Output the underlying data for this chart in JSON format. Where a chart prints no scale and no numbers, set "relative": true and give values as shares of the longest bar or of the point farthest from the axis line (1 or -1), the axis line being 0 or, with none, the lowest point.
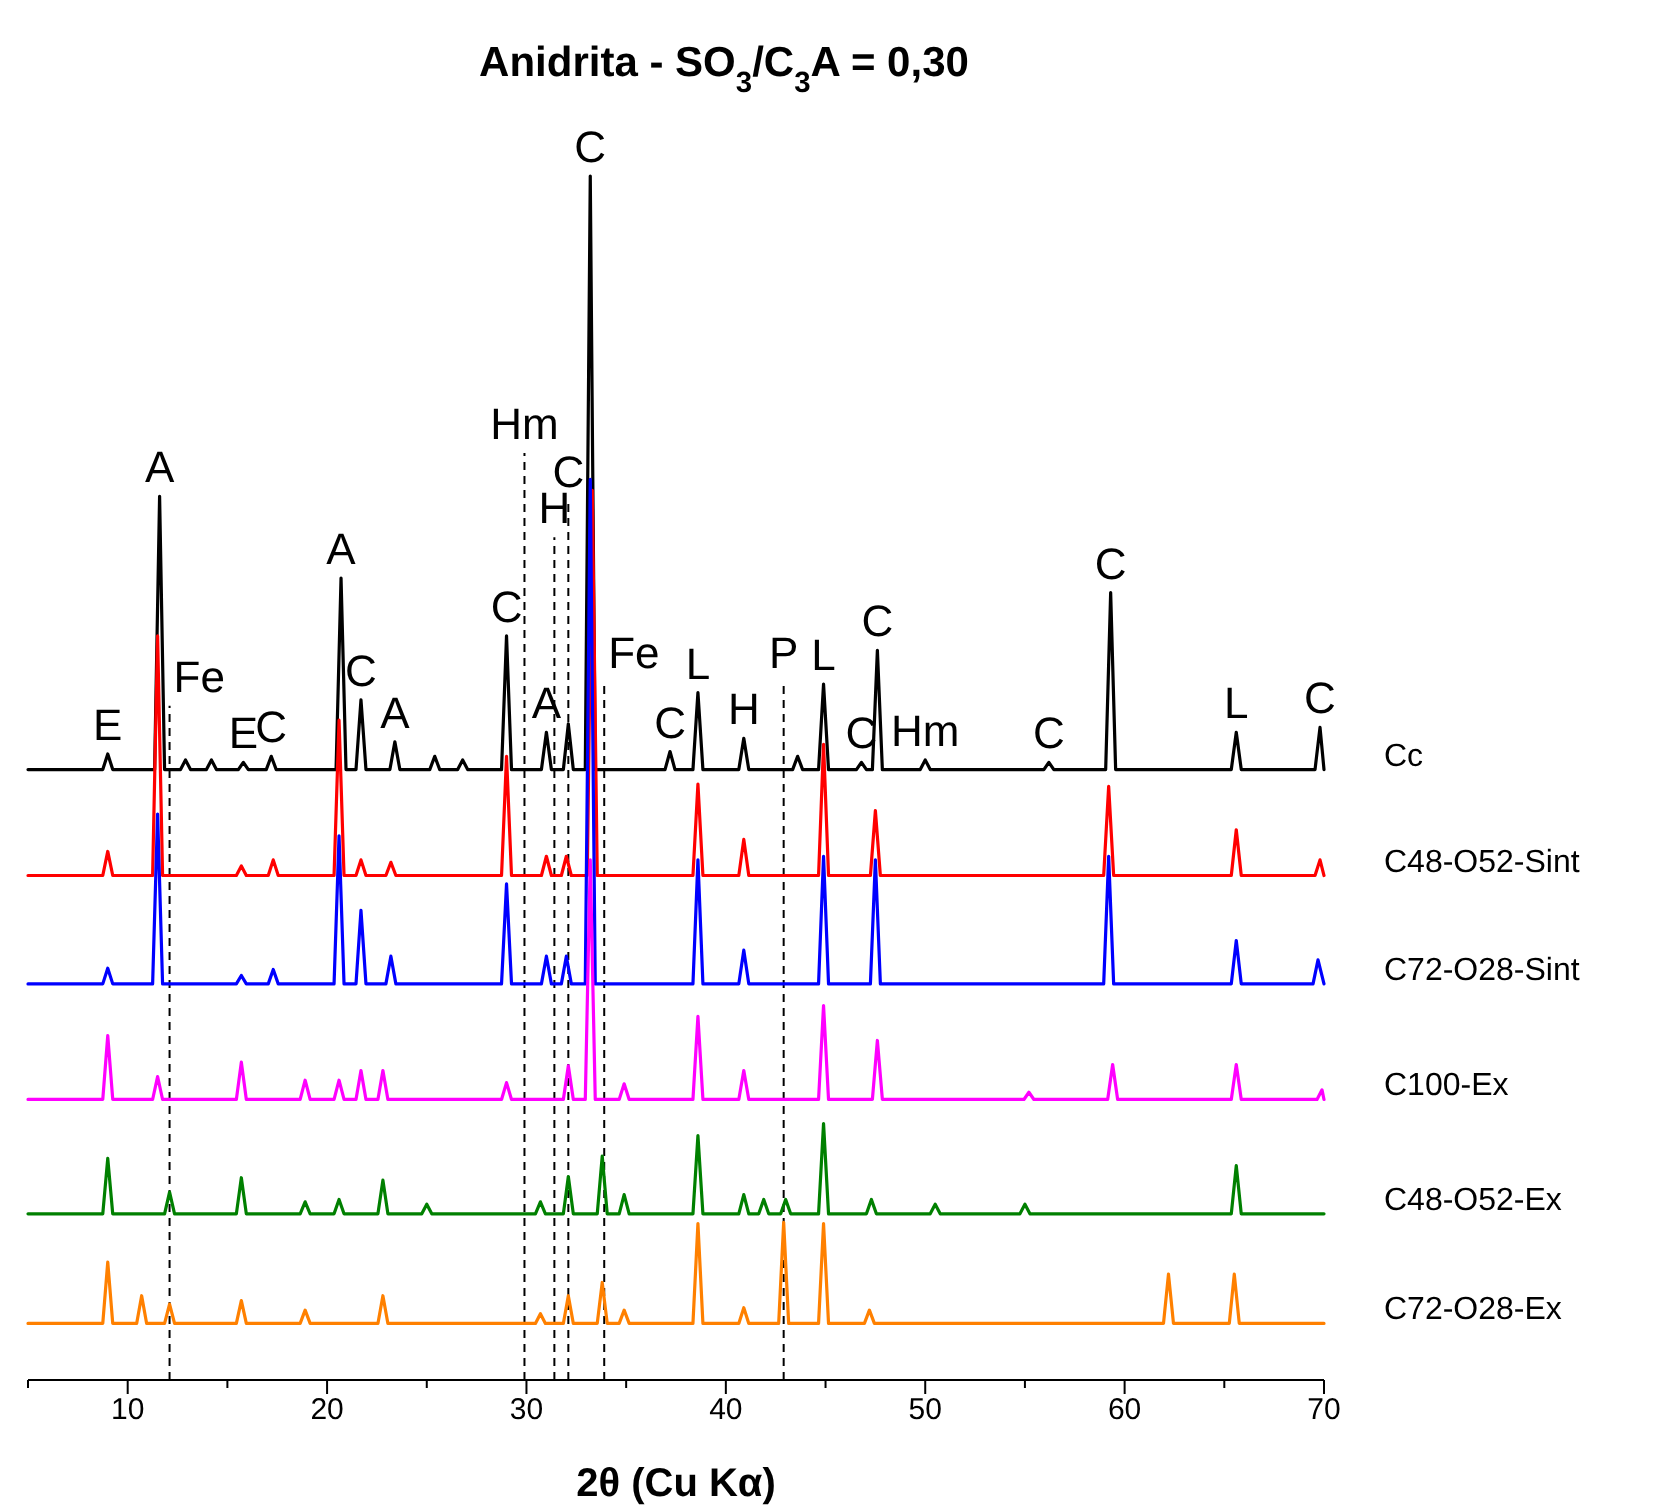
{
  "chart_data": {
    "type": "line",
    "relative": true,
    "title": "Anidrita - SO$_{3}$/C$_{3}$A = 0,30",
    "xlabel": "2θ (Cu Kα)",
    "xlim": [
      5,
      70
    ],
    "xticks": [
      {
        "value": 5,
        "label": null
      },
      10,
      {
        "value": 15,
        "label": null
      },
      20,
      {
        "value": 25,
        "label": null
      },
      30,
      {
        "value": 35,
        "label": null
      },
      40,
      {
        "value": 45,
        "label": null
      },
      50,
      {
        "value": 55,
        "label": null
      },
      60,
      {
        "value": 65,
        "label": null
      },
      70
    ],
    "grid": false,
    "legend": false,
    "marker": "none",
    "line_style": "solid",
    "series": [
      {
        "name": "Cc",
        "color": "#000000",
        "x": [
          5,
          8.75,
          9,
          9.25,
          11.35,
          11.6,
          11.85,
          12.65,
          12.9,
          13.15,
          13.95,
          14.2,
          14.45,
          15.55,
          15.8,
          16.05,
          16.95,
          17.2,
          17.45,
          20.45,
          20.7,
          20.95,
          21.45,
          21.7,
          21.95,
          23.15,
          23.4,
          23.65,
          25.15,
          25.4,
          25.65,
          26.55,
          26.8,
          27.05,
          28.75,
          29,
          29.25,
          30.75,
          31,
          31.25,
          31.85,
          32.1,
          32.35,
          32.95,
          33.2,
          33.45,
          36.95,
          37.2,
          37.45,
          38.35,
          38.6,
          38.85,
          40.65,
          40.9,
          41.15,
          43.35,
          43.6,
          43.85,
          44.65,
          44.9,
          45.15,
          46.55,
          46.8,
          47.05,
          47.35,
          47.6,
          47.85,
          49.75,
          50,
          50.25,
          55.95,
          56.2,
          56.45,
          59.05,
          59.3,
          59.55,
          65.35,
          65.6,
          65.85,
          69.55,
          69.8,
          70
        ],
        "values": [
          0.507,
          0.507,
          0.52,
          0.507,
          0.507,
          0.734,
          0.507,
          0.507,
          0.515,
          0.507,
          0.507,
          0.515,
          0.507,
          0.507,
          0.513,
          0.507,
          0.507,
          0.518,
          0.507,
          0.507,
          0.666,
          0.507,
          0.507,
          0.565,
          0.507,
          0.507,
          0.53,
          0.507,
          0.507,
          0.518,
          0.507,
          0.507,
          0.515,
          0.507,
          0.507,
          0.618,
          0.507,
          0.507,
          0.538,
          0.507,
          0.507,
          0.545,
          0.507,
          0.507,
          1.0,
          0.507,
          0.507,
          0.522,
          0.507,
          0.507,
          0.571,
          0.507,
          0.507,
          0.533,
          0.507,
          0.507,
          0.518,
          0.507,
          0.507,
          0.578,
          0.507,
          0.507,
          0.513,
          0.507,
          0.507,
          0.606,
          0.507,
          0.507,
          0.515,
          0.507,
          0.507,
          0.513,
          0.507,
          0.507,
          0.654,
          0.507,
          0.507,
          0.538,
          0.507,
          0.507,
          0.542,
          0.507
        ]
      },
      {
        "name": "C48-O52-Sint",
        "color": "#ff0000",
        "x": [
          5,
          8.75,
          9,
          9.25,
          11.25,
          11.5,
          11.75,
          15.45,
          15.7,
          15.95,
          17.05,
          17.3,
          17.55,
          20.35,
          20.6,
          20.85,
          21.45,
          21.7,
          21.95,
          22.95,
          23.2,
          23.45,
          28.75,
          29,
          29.25,
          30.75,
          31,
          31.25,
          31.75,
          32,
          32.25,
          33.05,
          33.3,
          33.55,
          38.35,
          38.6,
          38.85,
          40.65,
          40.9,
          41.15,
          44.65,
          44.9,
          45.15,
          47.25,
          47.5,
          47.75,
          58.95,
          59.2,
          59.45,
          65.35,
          65.6,
          65.85,
          69.55,
          69.8,
          70
        ],
        "values": [
          0.419,
          0.419,
          0.439,
          0.419,
          0.419,
          0.618,
          0.419,
          0.419,
          0.427,
          0.419,
          0.419,
          0.432,
          0.419,
          0.419,
          0.548,
          0.419,
          0.419,
          0.432,
          0.419,
          0.419,
          0.43,
          0.419,
          0.419,
          0.518,
          0.419,
          0.419,
          0.435,
          0.419,
          0.419,
          0.435,
          0.419,
          0.419,
          0.739,
          0.419,
          0.419,
          0.495,
          0.419,
          0.419,
          0.449,
          0.419,
          0.419,
          0.528,
          0.419,
          0.419,
          0.473,
          0.419,
          0.419,
          0.493,
          0.419,
          0.419,
          0.457,
          0.419,
          0.419,
          0.432,
          0.419
        ]
      },
      {
        "name": "C72-O28-Sint",
        "color": "#0000ff",
        "x": [
          5,
          8.75,
          9,
          9.25,
          11.25,
          11.5,
          11.75,
          15.45,
          15.7,
          15.95,
          17.05,
          17.3,
          17.55,
          20.35,
          20.6,
          20.85,
          21.45,
          21.7,
          21.95,
          22.95,
          23.2,
          23.45,
          28.75,
          29,
          29.25,
          30.75,
          31,
          31.25,
          31.75,
          32,
          32.25,
          32.95,
          33.2,
          33.45,
          38.35,
          38.6,
          38.85,
          40.65,
          40.9,
          41.15,
          44.65,
          44.9,
          45.15,
          47.25,
          47.5,
          47.75,
          58.95,
          59.2,
          59.45,
          65.35,
          65.6,
          65.85,
          69.45,
          69.7,
          70
        ],
        "values": [
          0.329,
          0.329,
          0.342,
          0.329,
          0.329,
          0.47,
          0.329,
          0.329,
          0.336,
          0.329,
          0.329,
          0.341,
          0.329,
          0.329,
          0.452,
          0.329,
          0.329,
          0.39,
          0.329,
          0.329,
          0.352,
          0.329,
          0.329,
          0.412,
          0.329,
          0.329,
          0.352,
          0.329,
          0.329,
          0.352,
          0.329,
          0.329,
          0.748,
          0.329,
          0.329,
          0.432,
          0.329,
          0.329,
          0.357,
          0.329,
          0.329,
          0.435,
          0.329,
          0.329,
          0.432,
          0.329,
          0.329,
          0.435,
          0.329,
          0.329,
          0.365,
          0.329,
          0.329,
          0.349,
          0.329
        ]
      },
      {
        "name": "C100-Ex",
        "color": "#ff00ff",
        "x": [
          5,
          8.75,
          9,
          9.25,
          11.25,
          11.5,
          11.75,
          15.45,
          15.7,
          15.95,
          18.65,
          18.9,
          19.15,
          20.35,
          20.6,
          20.85,
          21.45,
          21.7,
          21.95,
          22.55,
          22.8,
          23.05,
          28.75,
          29,
          29.25,
          31.85,
          32.1,
          32.35,
          32.95,
          33.2,
          33.45,
          34.65,
          34.9,
          35.15,
          38.35,
          38.6,
          38.85,
          40.65,
          40.9,
          41.15,
          44.65,
          44.9,
          45.15,
          47.35,
          47.6,
          47.85,
          54.95,
          55.2,
          55.45,
          59.15,
          59.4,
          59.65,
          65.35,
          65.6,
          65.85,
          69.65,
          69.9,
          70
        ],
        "values": [
          0.233,
          0.233,
          0.286,
          0.233,
          0.233,
          0.252,
          0.233,
          0.233,
          0.264,
          0.233,
          0.233,
          0.249,
          0.233,
          0.233,
          0.249,
          0.233,
          0.233,
          0.257,
          0.233,
          0.233,
          0.257,
          0.233,
          0.233,
          0.247,
          0.233,
          0.233,
          0.261,
          0.233,
          0.233,
          0.432,
          0.233,
          0.233,
          0.246,
          0.233,
          0.233,
          0.302,
          0.233,
          0.233,
          0.257,
          0.233,
          0.233,
          0.311,
          0.233,
          0.233,
          0.282,
          0.233,
          0.233,
          0.239,
          0.233,
          0.233,
          0.262,
          0.233,
          0.233,
          0.262,
          0.233,
          0.233,
          0.241,
          0.233
        ]
      },
      {
        "name": "C48-O52-Ex",
        "color": "#008000",
        "x": [
          5,
          8.75,
          9,
          9.25,
          11.85,
          12.1,
          12.35,
          15.45,
          15.7,
          15.95,
          18.65,
          18.9,
          19.15,
          20.35,
          20.6,
          20.85,
          22.55,
          22.8,
          23.05,
          24.75,
          25,
          25.25,
          30.45,
          30.7,
          30.95,
          31.85,
          32.1,
          32.35,
          33.55,
          33.8,
          34.05,
          34.65,
          34.9,
          35.15,
          38.35,
          38.6,
          38.85,
          40.65,
          40.9,
          41.15,
          41.65,
          41.9,
          42.15,
          42.75,
          43,
          43.25,
          44.65,
          44.9,
          45.15,
          47.05,
          47.3,
          47.55,
          50.25,
          50.5,
          50.75,
          54.75,
          55,
          55.25,
          65.35,
          65.6,
          65.85,
          70
        ],
        "values": [
          0.138,
          0.138,
          0.184,
          0.138,
          0.138,
          0.156,
          0.138,
          0.138,
          0.168,
          0.138,
          0.138,
          0.148,
          0.138,
          0.138,
          0.15,
          0.138,
          0.138,
          0.166,
          0.138,
          0.138,
          0.146,
          0.138,
          0.138,
          0.148,
          0.138,
          0.138,
          0.169,
          0.138,
          0.138,
          0.186,
          0.138,
          0.138,
          0.154,
          0.138,
          0.138,
          0.203,
          0.138,
          0.138,
          0.154,
          0.138,
          0.138,
          0.15,
          0.138,
          0.138,
          0.15,
          0.138,
          0.138,
          0.213,
          0.138,
          0.138,
          0.15,
          0.138,
          0.138,
          0.146,
          0.138,
          0.138,
          0.146,
          0.138,
          0.138,
          0.178,
          0.138,
          0.138
        ]
      },
      {
        "name": "C72-O28-Ex",
        "color": "#ff8000",
        "x": [
          5,
          8.75,
          9,
          9.25,
          10.45,
          10.7,
          10.95,
          11.85,
          12.1,
          12.35,
          15.45,
          15.7,
          15.95,
          18.65,
          18.9,
          19.15,
          22.55,
          22.8,
          23.05,
          30.45,
          30.7,
          30.95,
          31.85,
          32.1,
          32.35,
          33.55,
          33.8,
          34.05,
          34.65,
          34.9,
          35.15,
          38.35,
          38.6,
          38.85,
          40.65,
          40.9,
          41.15,
          42.65,
          42.9,
          43.15,
          44.65,
          44.9,
          45.15,
          46.95,
          47.2,
          47.45,
          61.95,
          62.2,
          62.45,
          65.25,
          65.5,
          65.75,
          70
        ],
        "values": [
          0.047,
          0.047,
          0.098,
          0.047,
          0.047,
          0.07,
          0.047,
          0.047,
          0.063,
          0.047,
          0.047,
          0.066,
          0.047,
          0.047,
          0.058,
          0.047,
          0.047,
          0.07,
          0.047,
          0.047,
          0.055,
          0.047,
          0.047,
          0.07,
          0.047,
          0.047,
          0.081,
          0.047,
          0.047,
          0.058,
          0.047,
          0.047,
          0.13,
          0.047,
          0.047,
          0.06,
          0.047,
          0.047,
          0.131,
          0.047,
          0.047,
          0.13,
          0.047,
          0.047,
          0.058,
          0.047,
          0.047,
          0.088,
          0.047,
          0.047,
          0.088,
          0.047,
          0.047
        ]
      }
    ],
    "ref_lines": [
      {
        "axis": "x",
        "value": 12.1,
        "color": "#000000",
        "line_style": "dashed"
      },
      {
        "axis": "x",
        "value": 29.9,
        "color": "#000000",
        "line_style": "dashed"
      },
      {
        "axis": "x",
        "value": 31.4,
        "color": "#000000",
        "line_style": "dashed"
      },
      {
        "axis": "x",
        "value": 32.1,
        "color": "#000000",
        "line_style": "dashed"
      },
      {
        "axis": "x",
        "value": 33.9,
        "color": "#000000",
        "line_style": "dashed"
      },
      {
        "axis": "x",
        "value": 42.9,
        "color": "#000000",
        "line_style": "dashed"
      }
    ],
    "annotations": [
      {
        "text": "E",
        "x": 9,
        "y": 0.52
      },
      {
        "text": "A",
        "x": 11.6,
        "y": 0.734
      },
      {
        "text": "Fe",
        "x": 12.1,
        "y": 0.56
      },
      {
        "text": "E",
        "x": 15.8,
        "y": 0.513
      },
      {
        "text": "C",
        "x": 17.2,
        "y": 0.518
      },
      {
        "text": "A",
        "x": 20.7,
        "y": 0.666
      },
      {
        "text": "C",
        "x": 21.7,
        "y": 0.565
      },
      {
        "text": "A",
        "x": 23.4,
        "y": 0.53
      },
      {
        "text": "C",
        "x": 29,
        "y": 0.618
      },
      {
        "text": "Hm",
        "x": 29.9,
        "y": 0.77
      },
      {
        "text": "A",
        "x": 31,
        "y": 0.538
      },
      {
        "text": "H",
        "x": 31.4,
        "y": 0.7
      },
      {
        "text": "C",
        "x": 32.1,
        "y": 0.73
      },
      {
        "text": "C",
        "x": 33.2,
        "y": 1.0
      },
      {
        "text": "Fe",
        "x": 33.9,
        "y": 0.58
      },
      {
        "text": "C",
        "x": 37.2,
        "y": 0.522
      },
      {
        "text": "L",
        "x": 38.6,
        "y": 0.571
      },
      {
        "text": "H",
        "x": 40.9,
        "y": 0.533
      },
      {
        "text": "P",
        "x": 42.9,
        "y": 0.58
      },
      {
        "text": "L",
        "x": 44.9,
        "y": 0.578
      },
      {
        "text": "C",
        "x": 46.8,
        "y": 0.513
      },
      {
        "text": "C",
        "x": 47.6,
        "y": 0.606
      },
      {
        "text": "Hm",
        "x": 50,
        "y": 0.515
      },
      {
        "text": "C",
        "x": 56.2,
        "y": 0.513
      },
      {
        "text": "C",
        "x": 59.3,
        "y": 0.654
      },
      {
        "text": "L",
        "x": 65.6,
        "y": 0.538
      },
      {
        "text": "C",
        "x": 69.8,
        "y": 0.542
      }
    ]
  }
}
